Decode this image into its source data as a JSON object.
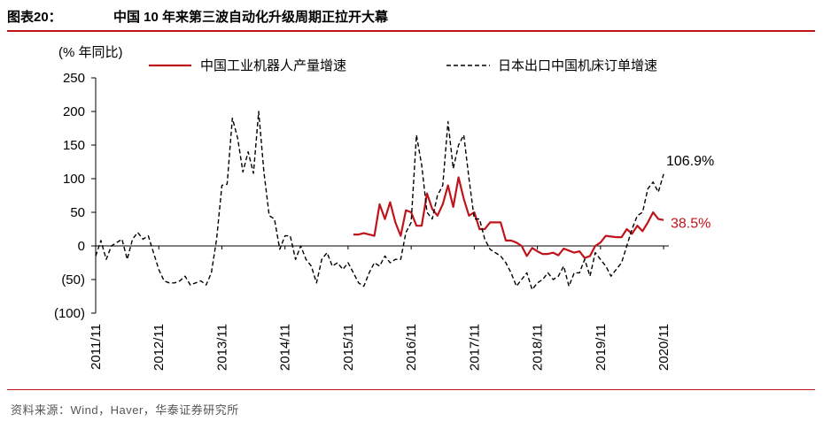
{
  "header": {
    "figure_label": "图表20：",
    "title": "中国 10 年来第三波自动化升级周期正拉开大幕"
  },
  "footer": {
    "source": "资料来源：Wind，Haver，华泰证券研究所"
  },
  "colors": {
    "accent": "#c0141b",
    "japan": "#000000",
    "rule": "#c0141b"
  },
  "chart_data": {
    "type": "line",
    "ylabel": "(% 年同比)",
    "ylim": [
      -100,
      250
    ],
    "yticks": [
      -100,
      -50,
      0,
      50,
      100,
      150,
      200,
      250
    ],
    "ytick_labels": [
      "(100)",
      "(50)",
      "0",
      "50",
      "100",
      "150",
      "200",
      "250"
    ],
    "xlim": [
      "2011-11",
      "2020-12"
    ],
    "xticks": [
      "2011/11",
      "2012/11",
      "2013/11",
      "2014/11",
      "2015/11",
      "2016/11",
      "2017/11",
      "2018/11",
      "2019/11",
      "2020/11"
    ],
    "grid": false,
    "legend_position": "top",
    "series": [
      {
        "name": "中国工业机器人产量增速",
        "style": "solid",
        "color": "#c0141b",
        "end_label": "38.5%",
        "points": [
          [
            "2015-12",
            17
          ],
          [
            "2016-01",
            17
          ],
          [
            "2016-02",
            19
          ],
          [
            "2016-03",
            17
          ],
          [
            "2016-04",
            15
          ],
          [
            "2016-05",
            62
          ],
          [
            "2016-06",
            40
          ],
          [
            "2016-07",
            65
          ],
          [
            "2016-08",
            35
          ],
          [
            "2016-09",
            15
          ],
          [
            "2016-10",
            53
          ],
          [
            "2016-11",
            50
          ],
          [
            "2016-12",
            30
          ],
          [
            "2017-01",
            30
          ],
          [
            "2017-02",
            78
          ],
          [
            "2017-03",
            55
          ],
          [
            "2017-04",
            45
          ],
          [
            "2017-05",
            62
          ],
          [
            "2017-06",
            90
          ],
          [
            "2017-07",
            58
          ],
          [
            "2017-08",
            102
          ],
          [
            "2017-09",
            70
          ],
          [
            "2017-10",
            45
          ],
          [
            "2017-11",
            50
          ],
          [
            "2017-12",
            25
          ],
          [
            "2018-01",
            25
          ],
          [
            "2018-02",
            35
          ],
          [
            "2018-03",
            35
          ],
          [
            "2018-04",
            35
          ],
          [
            "2018-05",
            8
          ],
          [
            "2018-06",
            8
          ],
          [
            "2018-07",
            5
          ],
          [
            "2018-08",
            0
          ],
          [
            "2018-09",
            -15
          ],
          [
            "2018-10",
            -3
          ],
          [
            "2018-11",
            -8
          ],
          [
            "2018-12",
            -12
          ],
          [
            "2019-01",
            -12
          ],
          [
            "2019-02",
            -10
          ],
          [
            "2019-03",
            -14
          ],
          [
            "2019-04",
            -4
          ],
          [
            "2019-05",
            -7
          ],
          [
            "2019-06",
            -10
          ],
          [
            "2019-07",
            -8
          ],
          [
            "2019-08",
            -18
          ],
          [
            "2019-09",
            -15
          ],
          [
            "2019-10",
            0
          ],
          [
            "2019-11",
            5
          ],
          [
            "2019-12",
            15
          ],
          [
            "2020-01",
            14
          ],
          [
            "2020-02",
            13
          ],
          [
            "2020-03",
            13
          ],
          [
            "2020-04",
            25
          ],
          [
            "2020-05",
            18
          ],
          [
            "2020-06",
            30
          ],
          [
            "2020-07",
            22
          ],
          [
            "2020-08",
            35
          ],
          [
            "2020-09",
            50
          ],
          [
            "2020-10",
            40
          ],
          [
            "2020-11",
            38.5
          ]
        ]
      },
      {
        "name": "日本出口中国机床订单增速",
        "style": "dashed",
        "color": "#000000",
        "end_label": "106.9%",
        "points": [
          [
            "2011-11",
            -15
          ],
          [
            "2011-12",
            8
          ],
          [
            "2012-01",
            -20
          ],
          [
            "2012-02",
            0
          ],
          [
            "2012-03",
            5
          ],
          [
            "2012-04",
            10
          ],
          [
            "2012-05",
            -20
          ],
          [
            "2012-06",
            10
          ],
          [
            "2012-07",
            20
          ],
          [
            "2012-08",
            10
          ],
          [
            "2012-09",
            15
          ],
          [
            "2012-10",
            -10
          ],
          [
            "2012-11",
            -35
          ],
          [
            "2012-12",
            -52
          ],
          [
            "2013-01",
            -55
          ],
          [
            "2013-02",
            -55
          ],
          [
            "2013-03",
            -52
          ],
          [
            "2013-04",
            -45
          ],
          [
            "2013-05",
            -58
          ],
          [
            "2013-06",
            -55
          ],
          [
            "2013-07",
            -52
          ],
          [
            "2013-08",
            -58
          ],
          [
            "2013-09",
            -40
          ],
          [
            "2013-10",
            10
          ],
          [
            "2013-11",
            90
          ],
          [
            "2013-12",
            92
          ],
          [
            "2014-01",
            190
          ],
          [
            "2014-02",
            160
          ],
          [
            "2014-03",
            110
          ],
          [
            "2014-04",
            140
          ],
          [
            "2014-05",
            108
          ],
          [
            "2014-06",
            200
          ],
          [
            "2014-07",
            110
          ],
          [
            "2014-08",
            45
          ],
          [
            "2014-09",
            40
          ],
          [
            "2014-10",
            -5
          ],
          [
            "2014-11",
            15
          ],
          [
            "2014-12",
            15
          ],
          [
            "2015-01",
            -20
          ],
          [
            "2015-02",
            0
          ],
          [
            "2015-03",
            -20
          ],
          [
            "2015-04",
            -30
          ],
          [
            "2015-05",
            -55
          ],
          [
            "2015-06",
            -20
          ],
          [
            "2015-07",
            -10
          ],
          [
            "2015-08",
            -30
          ],
          [
            "2015-09",
            -25
          ],
          [
            "2015-10",
            -35
          ],
          [
            "2015-11",
            -25
          ],
          [
            "2015-12",
            -40
          ],
          [
            "2016-01",
            -55
          ],
          [
            "2016-02",
            -60
          ],
          [
            "2016-03",
            -40
          ],
          [
            "2016-04",
            -25
          ],
          [
            "2016-05",
            -30
          ],
          [
            "2016-06",
            -15
          ],
          [
            "2016-07",
            -25
          ],
          [
            "2016-08",
            -20
          ],
          [
            "2016-09",
            -20
          ],
          [
            "2016-10",
            20
          ],
          [
            "2016-11",
            35
          ],
          [
            "2016-12",
            165
          ],
          [
            "2017-01",
            120
          ],
          [
            "2017-02",
            50
          ],
          [
            "2017-03",
            40
          ],
          [
            "2017-04",
            75
          ],
          [
            "2017-05",
            90
          ],
          [
            "2017-06",
            185
          ],
          [
            "2017-07",
            115
          ],
          [
            "2017-08",
            150
          ],
          [
            "2017-09",
            165
          ],
          [
            "2017-10",
            100
          ],
          [
            "2017-11",
            40
          ],
          [
            "2017-12",
            40
          ],
          [
            "2018-01",
            10
          ],
          [
            "2018-02",
            -5
          ],
          [
            "2018-03",
            -10
          ],
          [
            "2018-04",
            -15
          ],
          [
            "2018-05",
            -25
          ],
          [
            "2018-06",
            -40
          ],
          [
            "2018-07",
            -60
          ],
          [
            "2018-08",
            -50
          ],
          [
            "2018-09",
            -40
          ],
          [
            "2018-10",
            -65
          ],
          [
            "2018-11",
            -55
          ],
          [
            "2018-12",
            -50
          ],
          [
            "2019-01",
            -40
          ],
          [
            "2019-02",
            -50
          ],
          [
            "2019-03",
            -45
          ],
          [
            "2019-04",
            -30
          ],
          [
            "2019-05",
            -60
          ],
          [
            "2019-06",
            -40
          ],
          [
            "2019-07",
            -40
          ],
          [
            "2019-08",
            -20
          ],
          [
            "2019-09",
            -45
          ],
          [
            "2019-10",
            -10
          ],
          [
            "2019-11",
            -20
          ],
          [
            "2019-12",
            -30
          ],
          [
            "2020-01",
            -45
          ],
          [
            "2020-02",
            -35
          ],
          [
            "2020-03",
            -25
          ],
          [
            "2020-04",
            0
          ],
          [
            "2020-05",
            25
          ],
          [
            "2020-06",
            45
          ],
          [
            "2020-07",
            50
          ],
          [
            "2020-08",
            85
          ],
          [
            "2020-09",
            95
          ],
          [
            "2020-10",
            80
          ],
          [
            "2020-11",
            106.9
          ]
        ]
      }
    ]
  }
}
